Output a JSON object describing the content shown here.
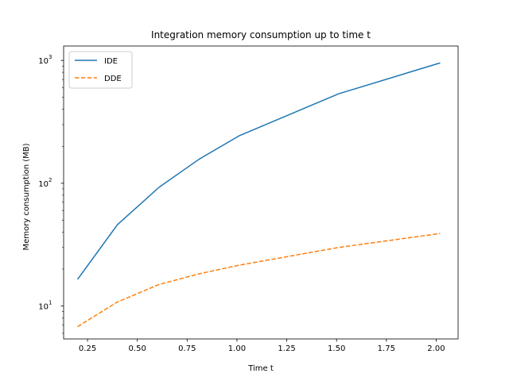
{
  "chart_data": {
    "type": "line",
    "title": "Integration memory consumption up to time t",
    "xlabel": "Time t",
    "ylabel": "Memory consumption (MB)",
    "xlim": [
      0.13,
      2.11
    ],
    "ylim": [
      5.4,
      1310
    ],
    "yscale": "log",
    "legend_position": "top-left",
    "grid": false,
    "x_ticks": [
      0.25,
      0.5,
      0.75,
      1.0,
      1.25,
      1.5,
      1.75,
      2.0
    ],
    "x_tick_labels": [
      "0.25",
      "0.50",
      "0.75",
      "1.00",
      "1.25",
      "1.50",
      "1.75",
      "2.00"
    ],
    "y_ticks": [
      10,
      100,
      1000
    ],
    "y_tick_labels": [
      {
        "base": "10",
        "exp": "1"
      },
      {
        "base": "10",
        "exp": "2"
      },
      {
        "base": "10",
        "exp": "3"
      }
    ],
    "series": [
      {
        "name": "IDE",
        "color": "#1f77b4",
        "style": "solid",
        "x": [
          0.2,
          0.4,
          0.61,
          0.81,
          1.01,
          1.51,
          2.02
        ],
        "y": [
          16.5,
          46,
          93,
          157,
          243,
          535,
          955
        ]
      },
      {
        "name": "DDE",
        "color": "#ff7f0e",
        "style": "dashed",
        "x": [
          0.2,
          0.4,
          0.61,
          0.81,
          1.01,
          1.51,
          2.02
        ],
        "y": [
          6.8,
          10.8,
          15,
          18.3,
          21.5,
          30,
          39
        ]
      }
    ]
  }
}
